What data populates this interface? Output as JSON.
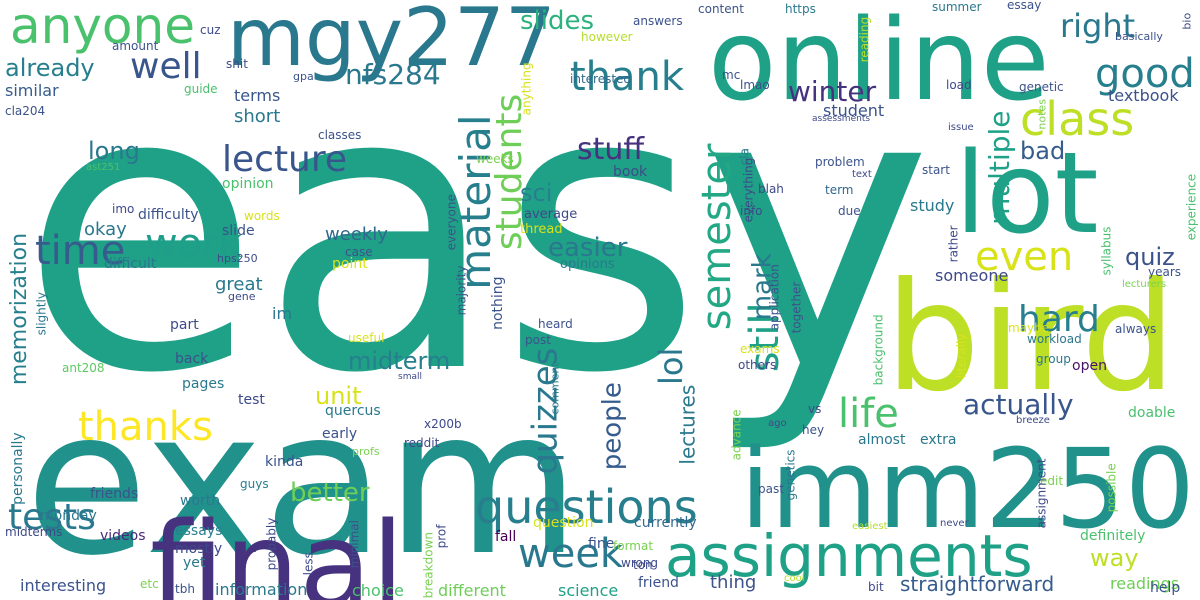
{
  "colors": {
    "background": "#ffffff",
    "palette": [
      "#440154",
      "#46327e",
      "#365c8d",
      "#277f8e",
      "#1fa187",
      "#4ac16d",
      "#a0da39",
      "#fde725"
    ]
  },
  "words": [
    {
      "text": "easy",
      "color": "#1fa187"
    },
    {
      "text": "exam",
      "color": "#21918c"
    },
    {
      "text": "bird",
      "color": "#bddf26"
    },
    {
      "text": "online",
      "color": "#1fa187"
    },
    {
      "text": "lot",
      "color": "#1fa187"
    },
    {
      "text": "imm250",
      "color": "#21918c"
    },
    {
      "text": "final",
      "color": "#46327e"
    },
    {
      "text": "mgy277",
      "color": "#2a788e"
    },
    {
      "text": "assignments",
      "color": "#1fa187"
    },
    {
      "text": "anyone",
      "color": "#4ac16d"
    },
    {
      "text": "questions",
      "color": "#277f8e"
    },
    {
      "text": "week",
      "color": "#2a788e"
    },
    {
      "text": "class",
      "color": "#bddf26"
    },
    {
      "text": "material",
      "color": "#277f8e"
    },
    {
      "text": "semester",
      "color": "#22a884"
    },
    {
      "text": "thank",
      "color": "#277f8e"
    },
    {
      "text": "time",
      "color": "#365c8d"
    },
    {
      "text": "work",
      "color": "#1f9e89"
    },
    {
      "text": "life",
      "color": "#4ac16d"
    },
    {
      "text": "good",
      "color": "#277f8e"
    },
    {
      "text": "still",
      "color": "#1fa187"
    },
    {
      "text": "even",
      "color": "#d8e219"
    },
    {
      "text": "well",
      "color": "#39568c"
    },
    {
      "text": "lecture",
      "color": "#39568c"
    },
    {
      "text": "hard",
      "color": "#277f8e"
    },
    {
      "text": "thanks",
      "color": "#fde725"
    },
    {
      "text": "tests",
      "color": "#2a788e"
    },
    {
      "text": "students",
      "color": "#6ece58"
    },
    {
      "text": "quizzes",
      "color": "#2a788e"
    },
    {
      "text": "right",
      "color": "#2a788e"
    },
    {
      "text": "multiple",
      "color": "#1fa187"
    },
    {
      "text": "lol",
      "color": "#2a788e"
    },
    {
      "text": "already",
      "color": "#277f8e"
    },
    {
      "text": "nfs284",
      "color": "#2a788e"
    },
    {
      "text": "stuff",
      "color": "#46327e"
    },
    {
      "text": "winter",
      "color": "#46337f"
    },
    {
      "text": "actually",
      "color": "#39568c"
    },
    {
      "text": "slides",
      "color": "#2db27d"
    },
    {
      "text": "better",
      "color": "#6ece58"
    },
    {
      "text": "people",
      "color": "#365c8d"
    },
    {
      "text": "easier",
      "color": "#2a788e"
    },
    {
      "text": "midterm",
      "color": "#277f8e"
    },
    {
      "text": "mark",
      "color": "#2a788e"
    },
    {
      "text": "quiz",
      "color": "#3b528b"
    },
    {
      "text": "bad",
      "color": "#365c8d"
    },
    {
      "text": "unit",
      "color": "#d8e219"
    },
    {
      "text": "long",
      "color": "#2a788e"
    },
    {
      "text": "way",
      "color": "#bddf26"
    },
    {
      "text": "memorization",
      "color": "#277f8e"
    },
    {
      "text": "lectures",
      "color": "#2a788e"
    },
    {
      "text": "straightforward",
      "color": "#365c8d"
    },
    {
      "text": "sci",
      "color": "#277f8e"
    },
    {
      "text": "weekly",
      "color": "#31688e"
    },
    {
      "text": "okay",
      "color": "#2a788e"
    },
    {
      "text": "great",
      "color": "#2a788e"
    },
    {
      "text": "short",
      "color": "#2a788e"
    },
    {
      "text": "similar",
      "color": "#365c8d"
    },
    {
      "text": "terms",
      "color": "#39568c"
    },
    {
      "text": "textbook",
      "color": "#3b528b"
    },
    {
      "text": "study",
      "color": "#2a788e"
    },
    {
      "text": "student",
      "color": "#3b528b"
    },
    {
      "text": "someone",
      "color": "#3e4989"
    },
    {
      "text": "im",
      "color": "#2a788e"
    },
    {
      "text": "opinion",
      "color": "#4ac16d"
    },
    {
      "text": "choice",
      "color": "#4ac16d"
    },
    {
      "text": "different",
      "color": "#6ece58"
    },
    {
      "text": "thing",
      "color": "#3b528b"
    },
    {
      "text": "science",
      "color": "#1fa187"
    },
    {
      "text": "readings",
      "color": "#6ece58"
    },
    {
      "text": "information",
      "color": "#2a788e"
    },
    {
      "text": "interesting",
      "color": "#3b528b"
    },
    {
      "text": "videos",
      "color": "#482878"
    },
    {
      "text": "mostly",
      "color": "#3e4989"
    },
    {
      "text": "currently",
      "color": "#31688e"
    },
    {
      "text": "definitely",
      "color": "#4ac16d"
    },
    {
      "text": "doable",
      "color": "#4ac16d"
    },
    {
      "text": "almost",
      "color": "#2a788e"
    },
    {
      "text": "extra",
      "color": "#2a788e"
    },
    {
      "text": "open",
      "color": "#471365"
    },
    {
      "text": "midterms",
      "color": "#3e4989"
    },
    {
      "text": "fine",
      "color": "#3b528b"
    },
    {
      "text": "fall",
      "color": "#440154"
    },
    {
      "text": "question",
      "color": "#d8e219"
    },
    {
      "text": "yet",
      "color": "#2a788e"
    },
    {
      "text": "essays",
      "color": "#277f8e"
    },
    {
      "text": "tbh",
      "color": "#3b528b"
    },
    {
      "text": "etc",
      "color": "#7ad151"
    },
    {
      "text": "friend",
      "color": "#3b528b"
    },
    {
      "text": "bit",
      "color": "#3e4989"
    },
    {
      "text": "help",
      "color": "#3b528b"
    },
    {
      "text": "cool",
      "color": "#b5de2b"
    },
    {
      "text": "monday",
      "color": "#2a788e"
    },
    {
      "text": "friends",
      "color": "#3b528b"
    },
    {
      "text": "worth",
      "color": "#2a788e"
    },
    {
      "text": "guys",
      "color": "#277f8e"
    },
    {
      "text": "kinda",
      "color": "#3b528b"
    },
    {
      "text": "early",
      "color": "#3b528b"
    },
    {
      "text": "quercus",
      "color": "#2a788e"
    },
    {
      "text": "test",
      "color": "#3e4989"
    },
    {
      "text": "pages",
      "color": "#2a788e"
    },
    {
      "text": "back",
      "color": "#3b528b"
    },
    {
      "text": "part",
      "color": "#3e4989"
    },
    {
      "text": "ant208",
      "color": "#5ec962"
    },
    {
      "text": "useful",
      "color": "#d8e219"
    },
    {
      "text": "heard",
      "color": "#3b528b"
    },
    {
      "text": "post",
      "color": "#3b528b"
    },
    {
      "text": "small",
      "color": "#3e4989"
    },
    {
      "text": "x200b",
      "color": "#3e4989"
    },
    {
      "text": "reddit",
      "color": "#3e4989"
    },
    {
      "text": "comment",
      "color": "#2a788e"
    },
    {
      "text": "profs",
      "color": "#7ad151"
    },
    {
      "text": "personally",
      "color": "#2a788e"
    },
    {
      "text": "slightly",
      "color": "#2a788e"
    },
    {
      "text": "difficult",
      "color": "#2a788e"
    },
    {
      "text": "difficulty",
      "color": "#3b528b"
    },
    {
      "text": "slide",
      "color": "#3b528b"
    },
    {
      "text": "gene",
      "color": "#3e4989"
    },
    {
      "text": "hps250",
      "color": "#3e4989"
    },
    {
      "text": "point",
      "color": "#d8e219"
    },
    {
      "text": "case",
      "color": "#3b528b"
    },
    {
      "text": "average",
      "color": "#3e4989"
    },
    {
      "text": "thread",
      "color": "#d8e219"
    },
    {
      "text": "opinions",
      "color": "#2a788e"
    },
    {
      "text": "nothing",
      "color": "#3b528b"
    },
    {
      "text": "majority",
      "color": "#3b528b"
    },
    {
      "text": "everyone",
      "color": "#3b528b"
    },
    {
      "text": "weeks",
      "color": "#7ad151"
    },
    {
      "text": "book",
      "color": "#3e4989"
    },
    {
      "text": "ast251",
      "color": "#4ac16d"
    },
    {
      "text": "imo",
      "color": "#3e4989"
    },
    {
      "text": "words",
      "color": "#d8e219"
    },
    {
      "text": "classes",
      "color": "#3b528b"
    },
    {
      "text": "cla204",
      "color": "#3b528b"
    },
    {
      "text": "guide",
      "color": "#4ac16d"
    },
    {
      "text": "gpa",
      "color": "#3b528b"
    },
    {
      "text": "shit",
      "color": "#3e4989"
    },
    {
      "text": "amount",
      "color": "#3b528b"
    },
    {
      "text": "cuz",
      "color": "#3e4989"
    },
    {
      "text": "answers",
      "color": "#3b528b"
    },
    {
      "text": "anything",
      "color": "#d8e219"
    },
    {
      "text": "however",
      "color": "#b5de2b"
    },
    {
      "text": "interested",
      "color": "#31688e"
    },
    {
      "text": "content",
      "color": "#3b528b"
    },
    {
      "text": "https",
      "color": "#2a788e"
    },
    {
      "text": "mc",
      "color": "#3b528b"
    },
    {
      "text": "lmao",
      "color": "#3b528b"
    },
    {
      "text": "load",
      "color": "#3e4989"
    },
    {
      "text": "genetic",
      "color": "#3b528b"
    },
    {
      "text": "reading",
      "color": "#b5de2b"
    },
    {
      "text": "summer",
      "color": "#2a788e"
    },
    {
      "text": "essay",
      "color": "#3b528b"
    },
    {
      "text": "basically",
      "color": "#3b528b"
    },
    {
      "text": "bio",
      "color": "#3e4989"
    },
    {
      "text": "notes",
      "color": "#7ad151"
    },
    {
      "text": "assessments",
      "color": "#3e4989"
    },
    {
      "text": "issue",
      "color": "#3e4989"
    },
    {
      "text": "problem",
      "color": "#3b528b"
    },
    {
      "text": "text",
      "color": "#3e4989"
    },
    {
      "text": "term",
      "color": "#31688e"
    },
    {
      "text": "cla",
      "color": "#2a788e"
    },
    {
      "text": "blah",
      "color": "#3e4989"
    },
    {
      "text": "info",
      "color": "#3e4989"
    },
    {
      "text": "due",
      "color": "#3b528b"
    },
    {
      "text": "start",
      "color": "#3b528b"
    },
    {
      "text": "experience",
      "color": "#4ac16d"
    },
    {
      "text": "syllabus",
      "color": "#4ac16d"
    },
    {
      "text": "years",
      "color": "#3b528b"
    },
    {
      "text": "lecturers",
      "color": "#7ad151"
    },
    {
      "text": "rather",
      "color": "#3e4989"
    },
    {
      "text": "always",
      "color": "#3b528b"
    },
    {
      "text": "literally",
      "color": "#d8e219"
    },
    {
      "text": "workload",
      "color": "#2a788e"
    },
    {
      "text": "maybe",
      "color": "#d8e219"
    },
    {
      "text": "group",
      "color": "#2a788e"
    },
    {
      "text": "application",
      "color": "#3b528b"
    },
    {
      "text": "everything",
      "color": "#3e4989"
    },
    {
      "text": "together",
      "color": "#3b528b"
    },
    {
      "text": "exams",
      "color": "#d8e219"
    },
    {
      "text": "others",
      "color": "#3e4989"
    },
    {
      "text": "background",
      "color": "#4ac16d"
    },
    {
      "text": "vs",
      "color": "#3e4989"
    },
    {
      "text": "hey",
      "color": "#3b528b"
    },
    {
      "text": "ago",
      "color": "#3e4989"
    },
    {
      "text": "advance",
      "color": "#7ad151"
    },
    {
      "text": "genetics",
      "color": "#2a788e"
    },
    {
      "text": "breeze",
      "color": "#3e4989"
    },
    {
      "text": "edit",
      "color": "#7ad151"
    },
    {
      "text": "possible",
      "color": "#7ad151"
    },
    {
      "text": "past",
      "color": "#3b528b"
    },
    {
      "text": "assignment",
      "color": "#3e4989"
    },
    {
      "text": "easiest",
      "color": "#b5de2b"
    },
    {
      "text": "never",
      "color": "#3e4989"
    },
    {
      "text": "ton",
      "color": "#3e4989"
    },
    {
      "text": "format",
      "color": "#7ad151"
    },
    {
      "text": "wrong",
      "color": "#3e4989"
    },
    {
      "text": "prof",
      "color": "#3e4989"
    },
    {
      "text": "breakdown",
      "color": "#7ad151"
    },
    {
      "text": "minimal",
      "color": "#3b528b"
    },
    {
      "text": "less",
      "color": "#3e4989"
    },
    {
      "text": "probably",
      "color": "#3e4989"
    }
  ]
}
